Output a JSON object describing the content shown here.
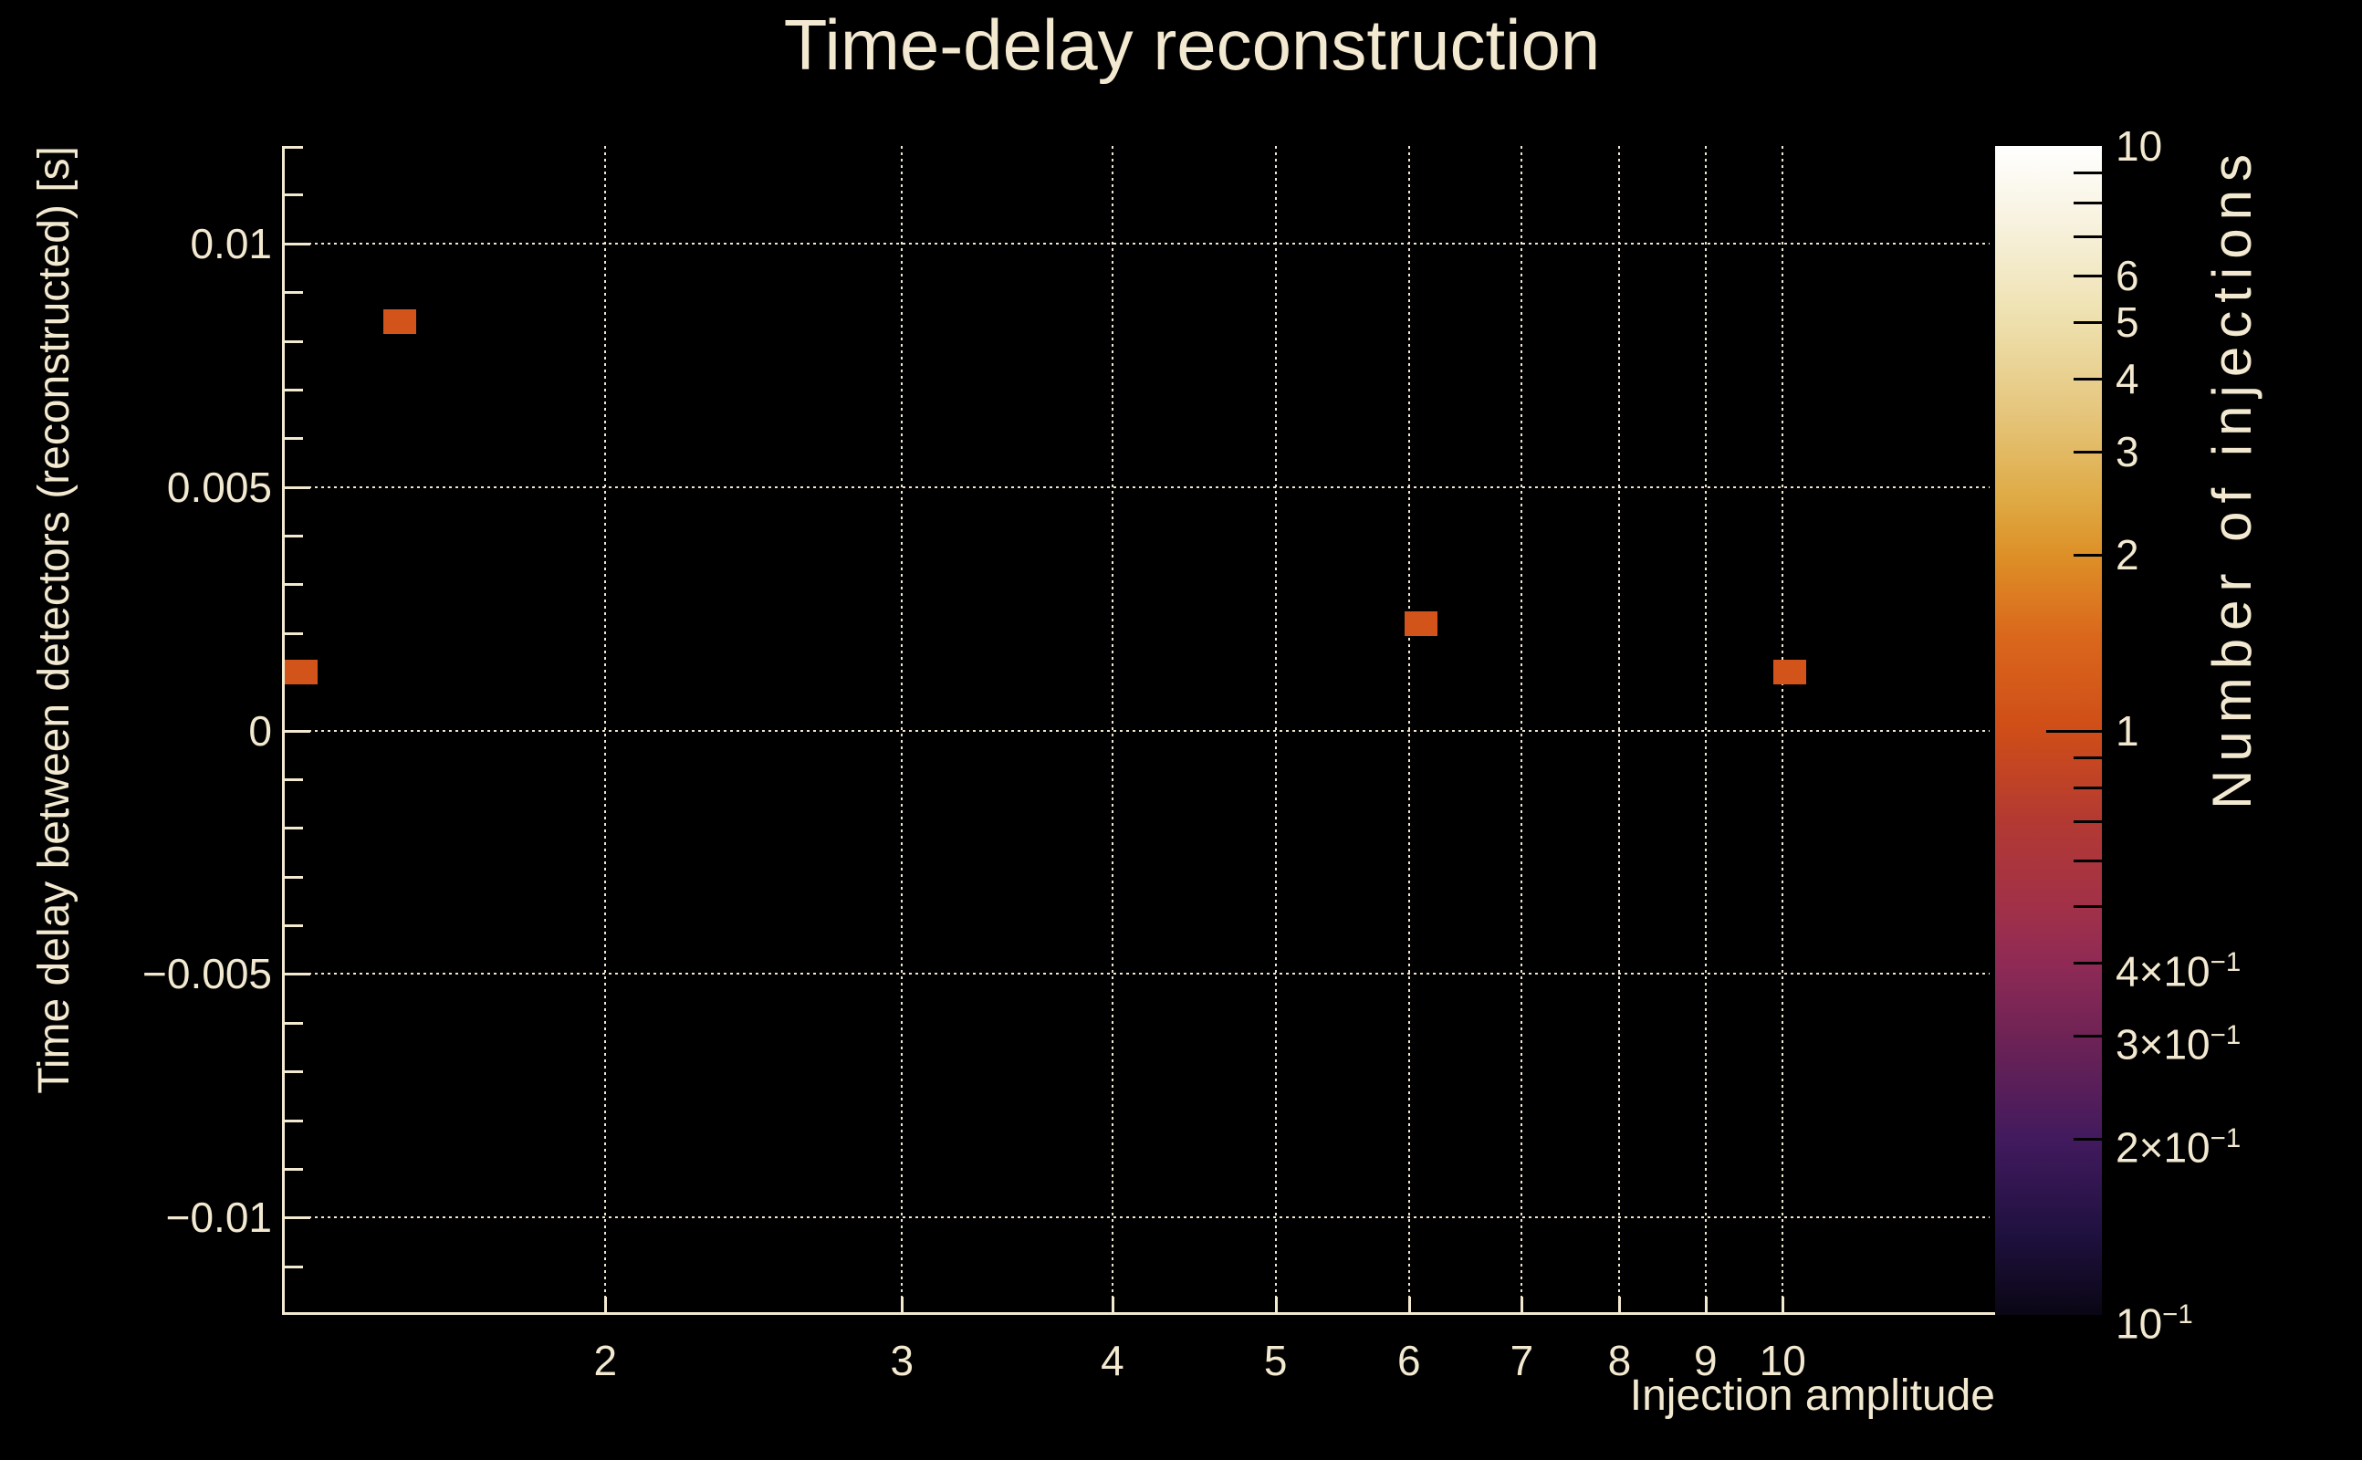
{
  "title": "Time-delay reconstruction",
  "colors": {
    "background": "#000000",
    "text": "#f2e9d0",
    "spine": "#f2e9d0",
    "grid": "#efe6cc",
    "bin_fill": "#d3541b",
    "colorbar_tick": "#000000"
  },
  "chart_data": {
    "type": "heatmap",
    "title": "Time-delay reconstruction",
    "xlabel": "Injection amplitude",
    "ylabel": "Time delay between detectors (reconstructed) [s]",
    "colorbar_label": "Number of injections",
    "x_scale": "log",
    "xlim": [
      1.287,
      13.27
    ],
    "ylim": [
      -0.012,
      0.012
    ],
    "grid": "dotted, major ticks only",
    "legend_position": "none",
    "x_ticks": [
      {
        "v": 2,
        "label": "2"
      },
      {
        "v": 3,
        "label": "3"
      },
      {
        "v": 4,
        "label": "4"
      },
      {
        "v": 5,
        "label": "5"
      },
      {
        "v": 6,
        "label": "6"
      },
      {
        "v": 7,
        "label": "7"
      },
      {
        "v": 8,
        "label": "8"
      },
      {
        "v": 9,
        "label": "9"
      },
      {
        "v": 10,
        "label": "10"
      }
    ],
    "y_major_ticks": [
      {
        "v": 0.01,
        "label": "0.01"
      },
      {
        "v": 0.005,
        "label": "0.005"
      },
      {
        "v": 0,
        "label": "0"
      },
      {
        "v": -0.005,
        "label": "−0.005"
      },
      {
        "v": -0.01,
        "label": "−0.01"
      }
    ],
    "y_minor_step": 0.001,
    "color_scale": "log",
    "clim": [
      0.1,
      10
    ],
    "colorbar_ticks": [
      {
        "v": 10,
        "base": "10",
        "exp": "",
        "major": false
      },
      {
        "v": 9,
        "base": "",
        "exp": "",
        "major": false
      },
      {
        "v": 8,
        "base": "",
        "exp": "",
        "major": false
      },
      {
        "v": 7,
        "base": "",
        "exp": "",
        "major": false
      },
      {
        "v": 6,
        "base": "6",
        "exp": "",
        "major": false
      },
      {
        "v": 5,
        "base": "5",
        "exp": "",
        "major": false
      },
      {
        "v": 4,
        "base": "4",
        "exp": "",
        "major": false
      },
      {
        "v": 3,
        "base": "3",
        "exp": "",
        "major": false
      },
      {
        "v": 2,
        "base": "2",
        "exp": "",
        "major": false
      },
      {
        "v": 1,
        "base": "1",
        "exp": "",
        "major": true
      },
      {
        "v": 0.9,
        "base": "",
        "exp": "",
        "major": false
      },
      {
        "v": 0.8,
        "base": "",
        "exp": "",
        "major": false
      },
      {
        "v": 0.7,
        "base": "",
        "exp": "",
        "major": false
      },
      {
        "v": 0.6,
        "base": "",
        "exp": "",
        "major": false
      },
      {
        "v": 0.5,
        "base": "",
        "exp": "",
        "major": false
      },
      {
        "v": 0.4,
        "base": "4×10",
        "exp": "−1",
        "major": false
      },
      {
        "v": 0.3,
        "base": "3×10",
        "exp": "−1",
        "major": false
      },
      {
        "v": 0.2,
        "base": "2×10",
        "exp": "−1",
        "major": false
      },
      {
        "v": 0.1,
        "base": "10",
        "exp": "−1",
        "major": false
      }
    ],
    "colorbar_gradient": [
      {
        "pos": 0,
        "color": "#ffffff"
      },
      {
        "pos": 7,
        "color": "#f7f1dc"
      },
      {
        "pos": 15,
        "color": "#eee0ad"
      },
      {
        "pos": 23,
        "color": "#e5c57b"
      },
      {
        "pos": 30,
        "color": "#dfab46"
      },
      {
        "pos": 35,
        "color": "#dd9027"
      },
      {
        "pos": 42,
        "color": "#da671c"
      },
      {
        "pos": 50,
        "color": "#cf4d18"
      },
      {
        "pos": 58,
        "color": "#b23933"
      },
      {
        "pos": 65,
        "color": "#a23148"
      },
      {
        "pos": 70,
        "color": "#8f2a55"
      },
      {
        "pos": 76,
        "color": "#6f2355"
      },
      {
        "pos": 85,
        "color": "#421a5e"
      },
      {
        "pos": 93,
        "color": "#1f1140"
      },
      {
        "pos": 100,
        "color": "#0a0614"
      }
    ],
    "bin_width_decades": 0.0195,
    "bin_height_s": 0.0005,
    "points": [
      {
        "amplitude": 1.32,
        "delay_s": 0.0012,
        "count": 1
      },
      {
        "amplitude": 1.51,
        "delay_s": 0.0084,
        "count": 1
      },
      {
        "amplitude": 6.1,
        "delay_s": 0.0022,
        "count": 1
      },
      {
        "amplitude": 10.1,
        "delay_s": 0.0012,
        "count": 1
      }
    ]
  }
}
